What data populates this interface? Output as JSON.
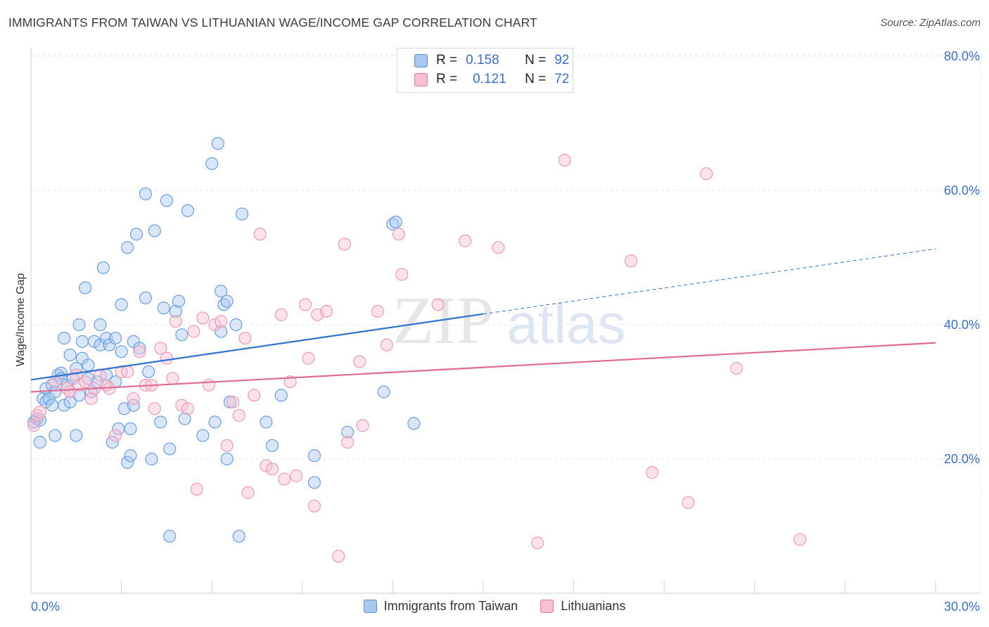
{
  "title": "IMMIGRANTS FROM TAIWAN VS LITHUANIAN WAGE/INCOME GAP CORRELATION CHART",
  "source": "Source: ZipAtlas.com",
  "watermark": {
    "zip": "ZIP",
    "atlas": "atlas"
  },
  "legend": {
    "rows": [
      {
        "r_label": "R =",
        "r_value": "0.158",
        "n_label": "N =",
        "n_value": "92",
        "color": "#a8c8f0",
        "border": "#5b8fd6"
      },
      {
        "r_label": "R =",
        "r_value": "0.121",
        "n_label": "N =",
        "n_value": "72",
        "color": "#f8c0d2",
        "border": "#e07a9c"
      }
    ]
  },
  "bottom_legend": [
    {
      "label": "Immigrants from Taiwan",
      "color": "#a8c8f0",
      "border": "#5b8fd6"
    },
    {
      "label": "Lithuanians",
      "color": "#f8c0d2",
      "border": "#e07a9c"
    }
  ],
  "chart_data": {
    "type": "scatter",
    "title": "IMMIGRANTS FROM TAIWAN VS LITHUANIAN WAGE/INCOME GAP CORRELATION CHART",
    "xlabel": "",
    "ylabel": "Wage/Income Gap",
    "xlim": [
      0,
      30
    ],
    "ylim": [
      0,
      80
    ],
    "x_tick_labels": [
      "0.0%",
      "30.0%"
    ],
    "y_tick_labels": [
      {
        "value": 20,
        "label": "20.0%"
      },
      {
        "value": 40,
        "label": "40.0%"
      },
      {
        "value": 60,
        "label": "60.0%"
      },
      {
        "value": 80,
        "label": "80.0%"
      }
    ],
    "grid": true,
    "legend_position": "top-center",
    "series": [
      {
        "name": "Immigrants from Taiwan",
        "color": "#6a9fe0",
        "trend": {
          "x0": 0,
          "y0": 31.8,
          "x1": 15,
          "y1": 41.6,
          "dash_to_x": 30,
          "dash_to_y": 51.3
        },
        "points": [
          [
            0.1,
            25.5
          ],
          [
            0.2,
            26.0
          ],
          [
            0.3,
            22.5
          ],
          [
            0.4,
            29.0
          ],
          [
            0.5,
            28.5
          ],
          [
            0.5,
            30.5
          ],
          [
            0.6,
            29.0
          ],
          [
            0.7,
            28.0
          ],
          [
            0.7,
            31.0
          ],
          [
            0.8,
            23.5
          ],
          [
            0.8,
            30.0
          ],
          [
            0.9,
            32.5
          ],
          [
            1.0,
            32.8
          ],
          [
            1.0,
            32.0
          ],
          [
            1.1,
            38.0
          ],
          [
            1.1,
            28.0
          ],
          [
            1.2,
            31.0
          ],
          [
            1.3,
            35.5
          ],
          [
            1.4,
            32.0
          ],
          [
            1.5,
            33.5
          ],
          [
            1.5,
            23.5
          ],
          [
            1.6,
            29.5
          ],
          [
            1.6,
            40.0
          ],
          [
            1.7,
            35.0
          ],
          [
            1.7,
            37.5
          ],
          [
            1.8,
            45.5
          ],
          [
            1.9,
            34.0
          ],
          [
            1.9,
            32.0
          ],
          [
            2.0,
            30.0
          ],
          [
            2.1,
            37.5
          ],
          [
            2.2,
            31.5
          ],
          [
            2.3,
            40.0
          ],
          [
            2.3,
            37.0
          ],
          [
            2.4,
            48.5
          ],
          [
            2.5,
            32.5
          ],
          [
            2.5,
            38.0
          ],
          [
            2.6,
            37.0
          ],
          [
            2.7,
            22.5
          ],
          [
            2.8,
            38.0
          ],
          [
            2.8,
            31.5
          ],
          [
            2.9,
            24.5
          ],
          [
            3.0,
            36.0
          ],
          [
            3.0,
            43.0
          ],
          [
            3.1,
            27.5
          ],
          [
            3.2,
            51.5
          ],
          [
            3.2,
            19.5
          ],
          [
            3.3,
            24.5
          ],
          [
            3.4,
            37.5
          ],
          [
            3.4,
            28.0
          ],
          [
            3.5,
            53.5
          ],
          [
            3.6,
            36.5
          ],
          [
            3.8,
            59.5
          ],
          [
            3.8,
            44.0
          ],
          [
            3.9,
            33.0
          ],
          [
            4.0,
            20.0
          ],
          [
            4.1,
            54.0
          ],
          [
            4.3,
            25.5
          ],
          [
            4.4,
            42.5
          ],
          [
            4.5,
            58.5
          ],
          [
            4.6,
            21.5
          ],
          [
            4.6,
            8.5
          ],
          [
            4.8,
            42.0
          ],
          [
            4.9,
            43.5
          ],
          [
            5.0,
            38.5
          ],
          [
            5.1,
            26.0
          ],
          [
            5.2,
            57.0
          ],
          [
            5.7,
            23.5
          ],
          [
            6.0,
            64.0
          ],
          [
            6.1,
            25.5
          ],
          [
            6.2,
            67.0
          ],
          [
            6.3,
            39.0
          ],
          [
            6.3,
            45.0
          ],
          [
            6.4,
            43.0
          ],
          [
            6.5,
            43.5
          ],
          [
            6.5,
            20.0
          ],
          [
            6.6,
            28.5
          ],
          [
            6.8,
            40.0
          ],
          [
            6.9,
            8.5
          ],
          [
            7.0,
            56.5
          ],
          [
            7.8,
            25.5
          ],
          [
            8.0,
            22.0
          ],
          [
            8.3,
            29.5
          ],
          [
            9.4,
            20.5
          ],
          [
            9.4,
            16.5
          ],
          [
            11.7,
            30.0
          ],
          [
            12.0,
            55.0
          ],
          [
            12.1,
            55.3
          ],
          [
            12.7,
            25.3
          ],
          [
            10.5,
            24.0
          ],
          [
            3.3,
            20.5
          ],
          [
            1.3,
            28.5
          ],
          [
            0.3,
            25.8
          ]
        ]
      },
      {
        "name": "Lithuanians",
        "color": "#ee9bb8",
        "trend": {
          "x0": 0,
          "y0": 30.0,
          "x1": 30,
          "y1": 37.3
        },
        "points": [
          [
            0.1,
            25.0
          ],
          [
            0.2,
            26.5
          ],
          [
            0.3,
            27.0
          ],
          [
            0.8,
            31.5
          ],
          [
            1.2,
            30.5
          ],
          [
            1.3,
            30.0
          ],
          [
            1.5,
            32.5
          ],
          [
            1.6,
            31.0
          ],
          [
            1.8,
            31.5
          ],
          [
            2.0,
            29.0
          ],
          [
            2.1,
            30.5
          ],
          [
            2.3,
            32.5
          ],
          [
            2.5,
            31.0
          ],
          [
            2.6,
            30.5
          ],
          [
            2.8,
            23.5
          ],
          [
            3.0,
            33.0
          ],
          [
            3.2,
            33.0
          ],
          [
            3.4,
            29.0
          ],
          [
            3.6,
            36.0
          ],
          [
            3.8,
            31.0
          ],
          [
            4.0,
            31.0
          ],
          [
            4.1,
            27.5
          ],
          [
            4.3,
            36.5
          ],
          [
            4.5,
            35.0
          ],
          [
            4.7,
            32.0
          ],
          [
            4.8,
            40.5
          ],
          [
            5.0,
            28.0
          ],
          [
            5.2,
            27.5
          ],
          [
            5.4,
            39.0
          ],
          [
            5.5,
            15.5
          ],
          [
            5.7,
            41.0
          ],
          [
            5.9,
            31.0
          ],
          [
            6.1,
            40.0
          ],
          [
            6.3,
            40.5
          ],
          [
            6.5,
            22.0
          ],
          [
            6.7,
            28.5
          ],
          [
            6.9,
            26.5
          ],
          [
            7.1,
            38.0
          ],
          [
            7.2,
            15.0
          ],
          [
            7.4,
            29.5
          ],
          [
            7.6,
            53.5
          ],
          [
            7.8,
            19.0
          ],
          [
            8.0,
            18.5
          ],
          [
            8.3,
            41.5
          ],
          [
            8.4,
            17.0
          ],
          [
            8.6,
            31.5
          ],
          [
            8.8,
            17.5
          ],
          [
            9.1,
            43.0
          ],
          [
            9.2,
            35.0
          ],
          [
            9.4,
            13.0
          ],
          [
            9.5,
            41.5
          ],
          [
            9.8,
            42.0
          ],
          [
            10.2,
            5.5
          ],
          [
            10.4,
            52.0
          ],
          [
            10.5,
            22.5
          ],
          [
            10.9,
            34.5
          ],
          [
            11.0,
            25.0
          ],
          [
            11.5,
            42.0
          ],
          [
            11.8,
            37.0
          ],
          [
            12.2,
            53.5
          ],
          [
            12.3,
            47.5
          ],
          [
            13.5,
            43.0
          ],
          [
            14.4,
            52.5
          ],
          [
            15.5,
            51.5
          ],
          [
            16.8,
            7.5
          ],
          [
            17.7,
            64.5
          ],
          [
            19.9,
            49.5
          ],
          [
            20.6,
            18.0
          ],
          [
            21.8,
            13.5
          ],
          [
            22.4,
            62.5
          ],
          [
            23.4,
            33.5
          ],
          [
            25.5,
            8.0
          ]
        ]
      }
    ]
  }
}
